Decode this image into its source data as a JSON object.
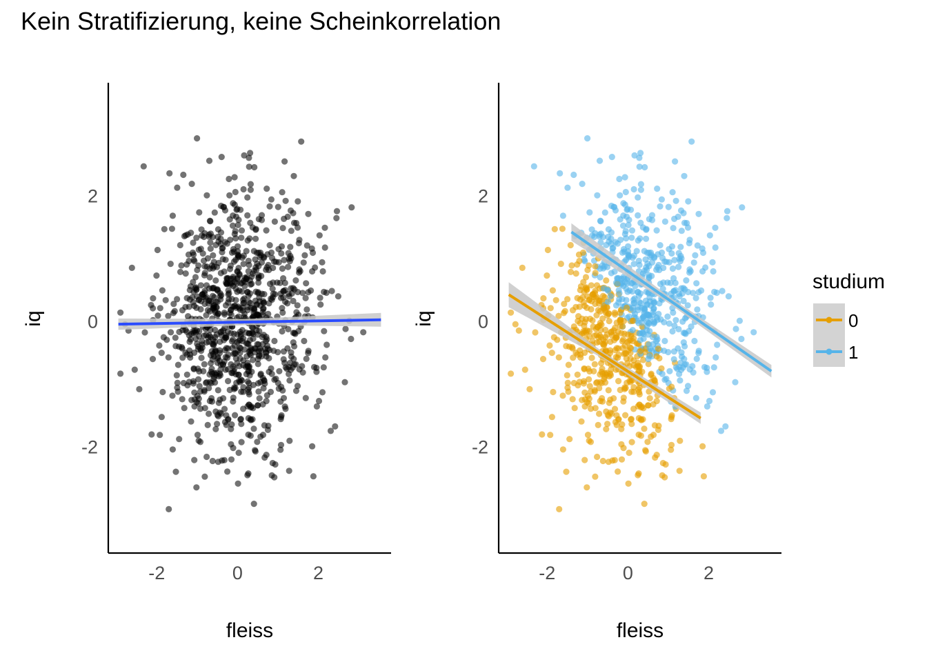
{
  "title": "Kein Stratifizierung, keine Scheinkorrelation",
  "colors": {
    "all": "#000000",
    "fit_all": "#2b4cff",
    "group0": "#e69f00",
    "group1": "#56b4e9",
    "band": "#c8c8c8"
  },
  "chart_data": [
    {
      "type": "scatter",
      "panel": "left",
      "xlabel": "fleiss",
      "ylabel": "iq",
      "xlim": [
        -3.2,
        3.8
      ],
      "ylim": [
        -3.7,
        3.8
      ],
      "xticks": [
        "-2",
        "0",
        "2"
      ],
      "yticks": [
        "-2",
        "0",
        "2"
      ],
      "grid": false,
      "n_points": 1000,
      "fit": {
        "method": "lm",
        "x": [
          -2.95,
          3.55
        ],
        "y": [
          -0.05,
          0.02
        ],
        "band_halfwidth_ends": [
          0.09,
          0.11
        ]
      }
    },
    {
      "type": "scatter",
      "panel": "right",
      "xlabel": "fleiss",
      "ylabel": "iq",
      "xlim": [
        -3.2,
        3.8
      ],
      "ylim": [
        -3.7,
        3.8
      ],
      "xticks": [
        "-2",
        "0",
        "2"
      ],
      "yticks": [
        "-2",
        "0",
        "2"
      ],
      "grid": false,
      "legend": {
        "title": "studium",
        "placement": "right",
        "labels": [
          "0",
          "1"
        ]
      },
      "series": [
        {
          "name": "0",
          "n_points": 500,
          "fit": {
            "method": "lm",
            "x": [
              -2.95,
              1.8
            ],
            "y": [
              0.42,
              -1.55
            ],
            "band_halfwidth_ends": [
              0.2,
              0.09
            ]
          }
        },
        {
          "name": "1",
          "n_points": 500,
          "fit": {
            "method": "lm",
            "x": [
              -1.4,
              3.55
            ],
            "y": [
              1.42,
              -0.8
            ],
            "band_halfwidth_ends": [
              0.14,
              0.1
            ]
          }
        }
      ]
    }
  ]
}
